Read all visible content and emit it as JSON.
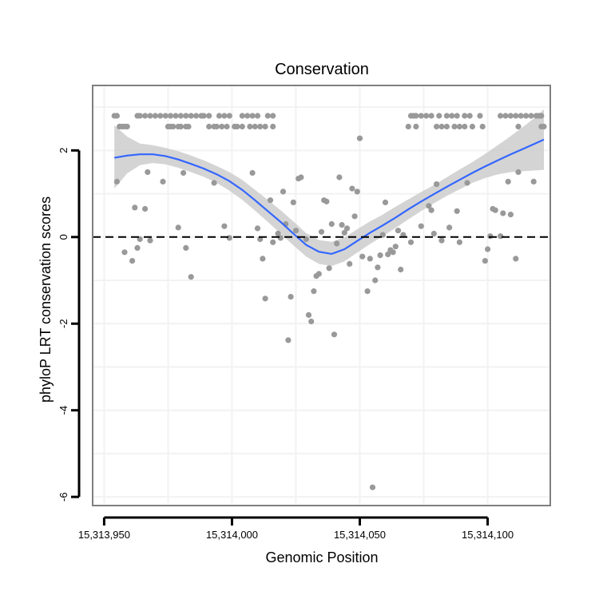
{
  "chart_data": {
    "type": "scatter",
    "title": "Conservation",
    "xlabel": "Genomic Position",
    "ylabel": "phyloP LRT conservation scores",
    "xlim": [
      15313945.5,
      15314124.5
    ],
    "ylim": [
      -6.2,
      3.5
    ],
    "x_ticks": [
      15313950,
      15314000,
      15314050,
      15314100
    ],
    "x_tick_labels": [
      "15,313,950",
      "15,314,000",
      "15,314,050",
      "15,314,100"
    ],
    "y_ticks": [
      2,
      0,
      -2,
      -4,
      -6
    ],
    "y_tick_labels": [
      "2",
      "0",
      "-2",
      "-4",
      "-6"
    ],
    "reference_line": {
      "y": 0,
      "style": "dashed"
    },
    "colors": {
      "points": "#999999",
      "smooth": "#3366ff",
      "ribbon": "#cccccc",
      "grid": "#f2f2f2",
      "frame": "#7f7f7f"
    },
    "points": [
      [
        15313954,
        2.8
      ],
      [
        15313955,
        2.8
      ],
      [
        15313956,
        2.55
      ],
      [
        15313957,
        2.55
      ],
      [
        15313958,
        2.55
      ],
      [
        15313959,
        2.55
      ],
      [
        15313955,
        1.28
      ],
      [
        15313963,
        2.8
      ],
      [
        15313964,
        2.8
      ],
      [
        15313966,
        2.8
      ],
      [
        15313968,
        2.8
      ],
      [
        15313970,
        2.8
      ],
      [
        15313972,
        2.8
      ],
      [
        15313974,
        2.8
      ],
      [
        15313976,
        2.8
      ],
      [
        15313978,
        2.8
      ],
      [
        15313980,
        2.8
      ],
      [
        15313982,
        2.8
      ],
      [
        15313984,
        2.8
      ],
      [
        15313986,
        2.8
      ],
      [
        15313988,
        2.8
      ],
      [
        15313989,
        2.8
      ],
      [
        15313991,
        2.8
      ],
      [
        15313995,
        2.8
      ],
      [
        15313997,
        2.8
      ],
      [
        15313999,
        2.8
      ],
      [
        15314004,
        2.8
      ],
      [
        15314006,
        2.8
      ],
      [
        15314008,
        2.8
      ],
      [
        15314010,
        2.8
      ],
      [
        15314014,
        2.8
      ],
      [
        15314016,
        2.8
      ],
      [
        15313975,
        2.55
      ],
      [
        15313976,
        2.55
      ],
      [
        15313977,
        2.55
      ],
      [
        15313979,
        2.55
      ],
      [
        15313980,
        2.55
      ],
      [
        15313982,
        2.55
      ],
      [
        15313983,
        2.55
      ],
      [
        15313991,
        2.55
      ],
      [
        15313993,
        2.55
      ],
      [
        15313994,
        2.55
      ],
      [
        15313996,
        2.55
      ],
      [
        15313998,
        2.55
      ],
      [
        15314001,
        2.55
      ],
      [
        15314002,
        2.55
      ],
      [
        15314004,
        2.55
      ],
      [
        15314007,
        2.55
      ],
      [
        15314009,
        2.55
      ],
      [
        15314011,
        2.55
      ],
      [
        15314013,
        2.55
      ],
      [
        15314016,
        2.55
      ],
      [
        15313958,
        -0.35
      ],
      [
        15313961,
        -0.55
      ],
      [
        15313962,
        0.68
      ],
      [
        15313963,
        -0.25
      ],
      [
        15313964,
        -0.05
      ],
      [
        15313966,
        0.65
      ],
      [
        15313967,
        1.5
      ],
      [
        15313968,
        -0.08
      ],
      [
        15313973,
        1.28
      ],
      [
        15313979,
        0.22
      ],
      [
        15313981,
        1.48
      ],
      [
        15313982,
        -0.25
      ],
      [
        15313984,
        -0.92
      ],
      [
        15313993,
        1.25
      ],
      [
        15313997,
        0.25
      ],
      [
        15313999,
        -0.02
      ],
      [
        15314008,
        1.48
      ],
      [
        15314010,
        0.2
      ],
      [
        15314011,
        -0.05
      ],
      [
        15314012,
        -0.5
      ],
      [
        15314013,
        -1.42
      ],
      [
        15314015,
        0.85
      ],
      [
        15314016,
        -0.12
      ],
      [
        15314018,
        0.08
      ],
      [
        15314019,
        -0.02
      ],
      [
        15314020,
        1.05
      ],
      [
        15314021,
        0.3
      ],
      [
        15314022,
        -2.38
      ],
      [
        15314023,
        -1.38
      ],
      [
        15314024,
        0.8
      ],
      [
        15314025,
        0.15
      ],
      [
        15314026,
        1.35
      ],
      [
        15314027,
        1.38
      ],
      [
        15314029,
        -0.05
      ],
      [
        15314030,
        -1.8
      ],
      [
        15314031,
        -1.95
      ],
      [
        15314032,
        -1.25
      ],
      [
        15314033,
        -0.9
      ],
      [
        15314034,
        -0.85
      ],
      [
        15314035,
        0.12
      ],
      [
        15314036,
        0.85
      ],
      [
        15314037,
        0.82
      ],
      [
        15314038,
        -0.72
      ],
      [
        15314039,
        0.3
      ],
      [
        15314040,
        -2.25
      ],
      [
        15314041,
        -0.15
      ],
      [
        15314042,
        1.38
      ],
      [
        15314043,
        0.28
      ],
      [
        15314044,
        0.1
      ],
      [
        15314045,
        0.2
      ],
      [
        15314046,
        -0.62
      ],
      [
        15314047,
        1.12
      ],
      [
        15314048,
        0.48
      ],
      [
        15314049,
        1.05
      ],
      [
        15314050,
        2.28
      ],
      [
        15314051,
        -0.45
      ],
      [
        15314053,
        -1.25
      ],
      [
        15314054,
        -0.5
      ],
      [
        15314055,
        -5.78
      ],
      [
        15314056,
        -1.0
      ],
      [
        15314057,
        -0.7
      ],
      [
        15314058,
        -0.42
      ],
      [
        15314059,
        0.05
      ],
      [
        15314060,
        0.8
      ],
      [
        15314061,
        -0.4
      ],
      [
        15314062,
        -0.3
      ],
      [
        15314063,
        -0.35
      ],
      [
        15314064,
        -0.22
      ],
      [
        15314065,
        0.15
      ],
      [
        15314066,
        -0.75
      ],
      [
        15314067,
        0.05
      ],
      [
        15314070,
        -0.12
      ],
      [
        15314070,
        2.8
      ],
      [
        15314071,
        2.8
      ],
      [
        15314072,
        2.8
      ],
      [
        15314074,
        2.8
      ],
      [
        15314076,
        2.8
      ],
      [
        15314078,
        2.8
      ],
      [
        15314081,
        2.8
      ],
      [
        15314084,
        2.8
      ],
      [
        15314086,
        2.8
      ],
      [
        15314088,
        2.8
      ],
      [
        15314091,
        2.8
      ],
      [
        15314093,
        2.8
      ],
      [
        15314097,
        2.8
      ],
      [
        15314105,
        2.8
      ],
      [
        15314107,
        2.8
      ],
      [
        15314109,
        2.8
      ],
      [
        15314111,
        2.8
      ],
      [
        15314113,
        2.8
      ],
      [
        15314115,
        2.8
      ],
      [
        15314117,
        2.8
      ],
      [
        15314119,
        2.8
      ],
      [
        15314120,
        2.8
      ],
      [
        15314121,
        2.8
      ],
      [
        15314069,
        2.55
      ],
      [
        15314072,
        2.55
      ],
      [
        15314080,
        2.55
      ],
      [
        15314082,
        2.55
      ],
      [
        15314084,
        2.55
      ],
      [
        15314087,
        2.55
      ],
      [
        15314089,
        2.55
      ],
      [
        15314091,
        2.55
      ],
      [
        15314094,
        2.55
      ],
      [
        15314098,
        2.55
      ],
      [
        15314112,
        2.55
      ],
      [
        15314121,
        2.55
      ],
      [
        15314122,
        2.55
      ],
      [
        15314074,
        0.25
      ],
      [
        15314077,
        0.72
      ],
      [
        15314078,
        0.62
      ],
      [
        15314079,
        0.08
      ],
      [
        15314080,
        1.22
      ],
      [
        15314082,
        -0.08
      ],
      [
        15314085,
        0.22
      ],
      [
        15314088,
        0.6
      ],
      [
        15314089,
        -0.12
      ],
      [
        15314092,
        1.25
      ],
      [
        15314099,
        -0.55
      ],
      [
        15314100,
        -0.28
      ],
      [
        15314101,
        0.02
      ],
      [
        15314102,
        0.65
      ],
      [
        15314103,
        0.62
      ],
      [
        15314105,
        0.02
      ],
      [
        15314106,
        0.55
      ],
      [
        15314108,
        1.28
      ],
      [
        15314109,
        0.52
      ],
      [
        15314111,
        -0.5
      ],
      [
        15314112,
        1.5
      ],
      [
        15314118,
        1.28
      ]
    ],
    "smooth": {
      "x": [
        15313954,
        15313959,
        15313964,
        15313969,
        15313974,
        15313979,
        15313984,
        15313989,
        15313994,
        15313999,
        15314004,
        15314009,
        15314014,
        15314019,
        15314024,
        15314029,
        15314034,
        15314039,
        15314044,
        15314049,
        15314054,
        15314059,
        15314064,
        15314069,
        15314074,
        15314079,
        15314084,
        15314089,
        15314094,
        15314099,
        15314104,
        15314109,
        15314114,
        15314119,
        15314122
      ],
      "fit": [
        1.83,
        1.88,
        1.91,
        1.91,
        1.87,
        1.79,
        1.69,
        1.58,
        1.45,
        1.29,
        1.09,
        0.85,
        0.6,
        0.35,
        0.08,
        -0.18,
        -0.34,
        -0.39,
        -0.28,
        -0.09,
        0.1,
        0.27,
        0.45,
        0.64,
        0.82,
        0.99,
        1.16,
        1.32,
        1.48,
        1.63,
        1.77,
        1.91,
        2.04,
        2.17,
        2.25
      ],
      "lower": [
        1.12,
        1.47,
        1.66,
        1.71,
        1.68,
        1.6,
        1.5,
        1.39,
        1.25,
        1.07,
        0.86,
        0.61,
        0.35,
        0.08,
        -0.19,
        -0.45,
        -0.62,
        -0.67,
        -0.56,
        -0.36,
        -0.16,
        0.02,
        0.21,
        0.41,
        0.6,
        0.78,
        0.95,
        1.1,
        1.25,
        1.36,
        1.45,
        1.5,
        1.52,
        1.54,
        1.55
      ],
      "upper": [
        2.58,
        2.32,
        2.16,
        2.12,
        2.06,
        1.98,
        1.88,
        1.77,
        1.64,
        1.5,
        1.32,
        1.09,
        0.86,
        0.62,
        0.36,
        0.09,
        -0.07,
        -0.11,
        -0.01,
        0.18,
        0.36,
        0.52,
        0.7,
        0.87,
        1.04,
        1.2,
        1.38,
        1.56,
        1.73,
        1.92,
        2.12,
        2.33,
        2.55,
        2.78,
        2.95
      ]
    }
  }
}
